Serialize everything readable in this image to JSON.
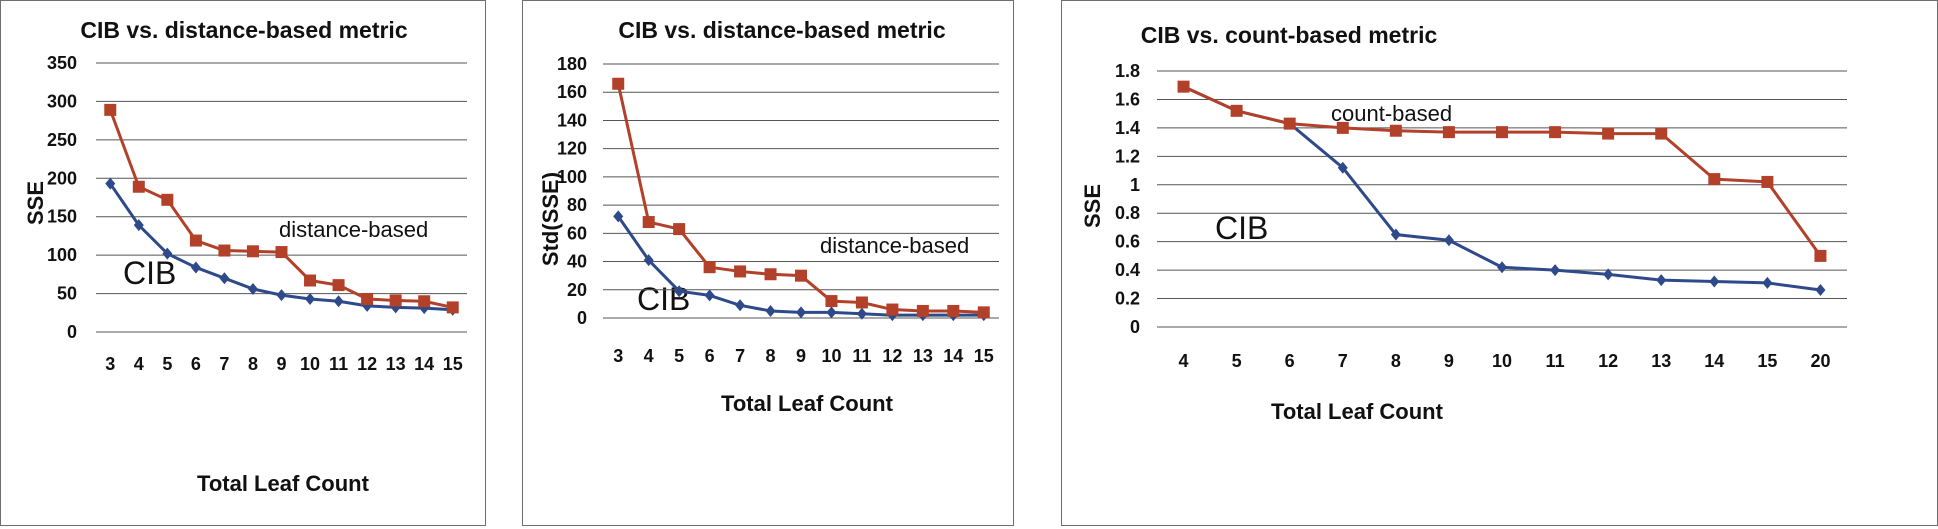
{
  "colors": {
    "cib": "#2e4a8a",
    "other": "#b3412a"
  },
  "chart_data": [
    {
      "type": "line",
      "title": "CIB vs. distance-based metric",
      "xlabel": "Total Leaf Count",
      "ylabel": "SSE",
      "categories": [
        "3",
        "4",
        "5",
        "6",
        "7",
        "8",
        "9",
        "10",
        "11",
        "12",
        "13",
        "14",
        "15"
      ],
      "ylim": [
        0,
        350
      ],
      "yticks": [
        "0",
        "50",
        "100",
        "150",
        "200",
        "250",
        "300",
        "350"
      ],
      "ystep": 50,
      "grid": true,
      "annotations": [
        "distance-based",
        "CIB"
      ],
      "series": [
        {
          "name": "distance-based",
          "values": [
            289,
            189,
            172,
            119,
            106,
            105,
            104,
            67,
            61,
            43,
            41,
            40,
            32
          ]
        },
        {
          "name": "CIB",
          "values": [
            193,
            139,
            102,
            84,
            70,
            56,
            48,
            43,
            40,
            34,
            32,
            31,
            29
          ]
        }
      ]
    },
    {
      "type": "line",
      "title": "CIB vs. distance-based metric",
      "xlabel": "Total Leaf Count",
      "ylabel": "Std(SSE)",
      "categories": [
        "3",
        "4",
        "5",
        "6",
        "7",
        "8",
        "9",
        "10",
        "11",
        "12",
        "13",
        "14",
        "15"
      ],
      "ylim": [
        0,
        180
      ],
      "yticks": [
        "0",
        "20",
        "40",
        "60",
        "80",
        "100",
        "120",
        "140",
        "160",
        "180"
      ],
      "ystep": 20,
      "grid": true,
      "annotations": [
        "distance-based",
        "CIB"
      ],
      "series": [
        {
          "name": "distance-based",
          "values": [
            166,
            68,
            63,
            36,
            33,
            31,
            30,
            12,
            11,
            6,
            5,
            5,
            4
          ]
        },
        {
          "name": "CIB",
          "values": [
            72,
            41,
            19,
            16,
            9,
            5,
            4,
            4,
            3,
            2,
            2,
            2,
            2
          ]
        }
      ]
    },
    {
      "type": "line",
      "title": "CIB vs. count-based metric",
      "xlabel": "Total Leaf Count",
      "ylabel": "SSE",
      "categories": [
        "4",
        "5",
        "6",
        "7",
        "8",
        "9",
        "10",
        "11",
        "12",
        "13",
        "14",
        "15",
        "20"
      ],
      "ylim": [
        0,
        1.8
      ],
      "yticks": [
        "0",
        "0.2",
        "0.4",
        "0.6",
        "0.8",
        "1",
        "1.2",
        "1.4",
        "1.6",
        "1.8"
      ],
      "ystep": 0.2,
      "grid": true,
      "annotations": [
        "count-based",
        "CIB"
      ],
      "series": [
        {
          "name": "count-based",
          "values": [
            1.69,
            1.52,
            1.43,
            1.4,
            1.38,
            1.37,
            1.37,
            1.37,
            1.36,
            1.36,
            1.04,
            1.02,
            0.5
          ]
        },
        {
          "name": "CIB",
          "values": [
            1.69,
            1.52,
            1.43,
            1.12,
            0.65,
            0.61,
            0.42,
            0.4,
            0.37,
            0.33,
            0.32,
            0.31,
            0.26
          ]
        }
      ]
    }
  ]
}
